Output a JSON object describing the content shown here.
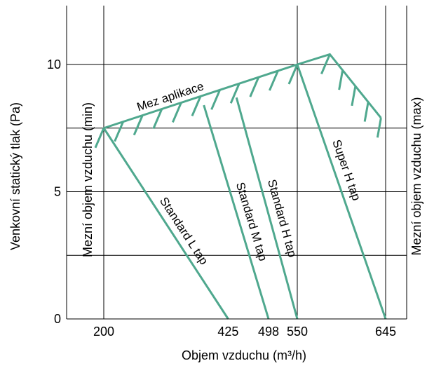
{
  "chart_data": {
    "type": "line",
    "xlabel": "Objem vzduchu (m³/h)",
    "ylabel": "Venkovní statický tlak (Pa)",
    "xlim": [
      120,
      680
    ],
    "ylim": [
      0,
      12.5
    ],
    "x_ticks": [
      {
        "value": 200,
        "label": "200"
      },
      {
        "value": 425,
        "label": "425"
      },
      {
        "value": 498,
        "label": "498"
      },
      {
        "value": 550,
        "label": "550"
      },
      {
        "value": 645,
        "label": "645"
      }
    ],
    "y_ticks": [
      {
        "value": 0,
        "label": "0"
      },
      {
        "value": 5,
        "label": "5"
      },
      {
        "value": 10,
        "label": "10"
      }
    ],
    "grid_y": [
      2.5,
      5,
      7.5,
      10
    ],
    "grid_x": [
      200,
      550,
      645
    ],
    "application_limit": {
      "label": "Mez aplikace",
      "points": [
        [
          200,
          7.5
        ],
        [
          550,
          10
        ],
        [
          585,
          10.4
        ],
        [
          640,
          7.9
        ]
      ]
    },
    "series": [
      {
        "name": "Standard L tap",
        "points": [
          [
            200,
            7.5
          ],
          [
            425,
            0
          ]
        ]
      },
      {
        "name": "Standard M tap",
        "points": [
          [
            381,
            8.4
          ],
          [
            498,
            0
          ]
        ]
      },
      {
        "name": "Standard H tap",
        "points": [
          [
            440,
            8.7
          ],
          [
            550,
            0
          ]
        ]
      },
      {
        "name": "Super H tap",
        "points": [
          [
            550,
            10
          ],
          [
            645,
            0
          ]
        ]
      }
    ],
    "left_limit_label": "Mezní objem vzduchu (min)",
    "right_limit_label": "Mezní objem vzduchu (max)",
    "line_color": "#4fa88e"
  }
}
